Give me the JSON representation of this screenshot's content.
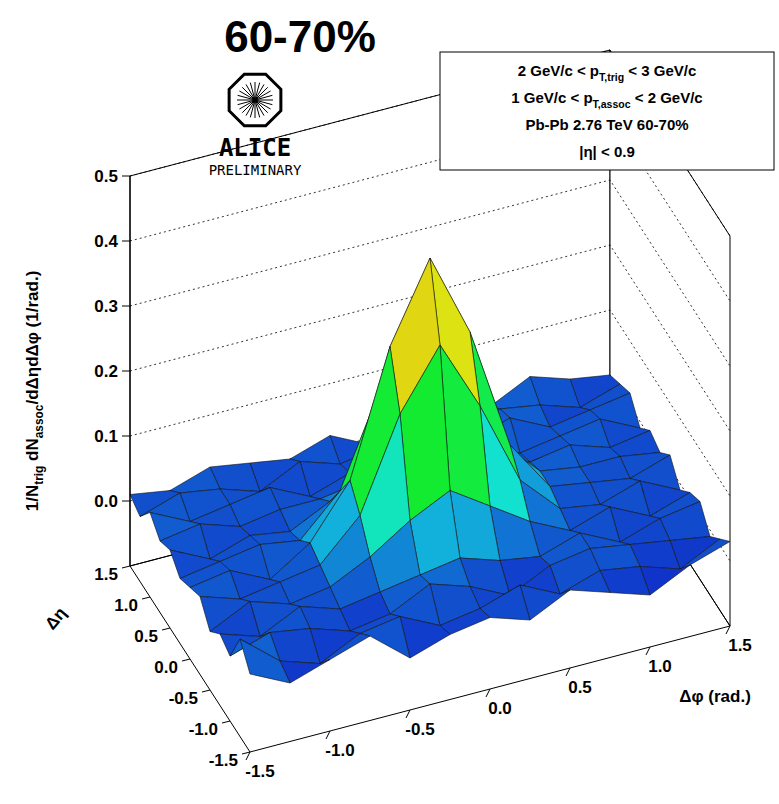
{
  "chart_data": {
    "type": "surface3d",
    "title": "60-70%",
    "logo": {
      "name": "ALICE",
      "tag": "PRELIMINARY"
    },
    "info_box": [
      [
        {
          "text": "2 GeV/c < p"
        },
        {
          "sub": "T,trig"
        },
        {
          "text": " < 3 GeV/c"
        }
      ],
      [
        {
          "text": "1 GeV/c < p"
        },
        {
          "sub": "T,assoc"
        },
        {
          "text": " < 2 GeV/c"
        }
      ],
      [
        {
          "text": "Pb-Pb 2.76 TeV  60-70%"
        }
      ],
      [
        {
          "text": "|η| < 0.9"
        }
      ]
    ],
    "x_label": "Δφ (rad.)",
    "y_label": "Δη",
    "z_label": [
      {
        "text": "1/N"
      },
      {
        "sub": "trig"
      },
      {
        "text": " dN"
      },
      {
        "sub": "assoc"
      },
      {
        "text": "/dΔηdΔφ (1/rad.)"
      }
    ],
    "x": [
      -1.5,
      -1.25,
      -1.0,
      -0.75,
      -0.5,
      -0.25,
      0.0,
      0.25,
      0.5,
      0.75,
      1.0,
      1.25,
      1.5
    ],
    "y": [
      -1.5,
      -1.25,
      -1.0,
      -0.75,
      -0.5,
      -0.25,
      0.0,
      0.25,
      0.5,
      0.75,
      1.0,
      1.25,
      1.5
    ],
    "z": [
      [
        0.02,
        -0.01,
        0.01,
        0.03,
        -0.02,
        0.0,
        0.01,
        -0.01,
        0.02,
        0.0,
        -0.02,
        0.01,
        0.03
      ],
      [
        0.05,
        0.0,
        -0.02,
        0.01,
        0.02,
        -0.01,
        0.0,
        0.02,
        -0.01,
        0.01,
        0.0,
        -0.02,
        0.01
      ],
      [
        0.0,
        0.02,
        0.01,
        -0.01,
        0.0,
        0.03,
        0.01,
        -0.02,
        0.01,
        0.02,
        0.01,
        0.0,
        -0.01
      ],
      [
        0.01,
        -0.01,
        0.02,
        0.0,
        0.01,
        0.02,
        0.03,
        0.01,
        0.0,
        0.02,
        -0.01,
        0.01,
        0.02
      ],
      [
        -0.01,
        0.02,
        0.0,
        0.01,
        0.04,
        0.08,
        0.11,
        0.07,
        0.03,
        0.0,
        0.02,
        -0.01,
        0.01
      ],
      [
        0.02,
        0.0,
        0.01,
        0.02,
        0.08,
        0.22,
        0.31,
        0.2,
        0.07,
        0.01,
        0.0,
        0.02,
        -0.01
      ],
      [
        0.01,
        0.02,
        -0.01,
        0.03,
        0.11,
        0.3,
        0.42,
        0.29,
        0.1,
        0.02,
        0.01,
        0.0,
        0.02
      ],
      [
        0.0,
        0.01,
        0.02,
        0.01,
        0.07,
        0.21,
        0.3,
        0.22,
        0.08,
        0.02,
        0.01,
        0.01,
        0.0
      ],
      [
        0.02,
        -0.01,
        0.01,
        0.0,
        0.03,
        0.07,
        0.1,
        0.08,
        0.02,
        0.01,
        0.02,
        0.0,
        0.01
      ],
      [
        0.01,
        0.02,
        0.0,
        0.01,
        0.01,
        0.02,
        0.02,
        0.01,
        0.02,
        0.0,
        0.01,
        0.02,
        -0.01
      ],
      [
        0.03,
        0.0,
        0.01,
        0.02,
        -0.01,
        0.01,
        0.0,
        0.02,
        0.01,
        0.03,
        0.0,
        0.01,
        0.02
      ],
      [
        0.0,
        0.02,
        0.01,
        -0.01,
        0.02,
        0.0,
        0.01,
        0.01,
        0.0,
        0.02,
        0.01,
        -0.01,
        0.01
      ],
      [
        0.01,
        0.0,
        0.02,
        0.01,
        0.0,
        0.02,
        -0.01,
        0.01,
        0.02,
        0.0,
        0.03,
        0.01,
        0.0
      ]
    ],
    "xlim": [
      -1.5,
      1.5
    ],
    "ylim": [
      -1.5,
      1.5
    ],
    "zlim": [
      -0.1,
      0.5
    ],
    "xticks": [
      -1.5,
      {
        "value": -1,
        "label": "-1.0"
      },
      -0.5,
      {
        "value": 0,
        "label": "0.0"
      },
      0.5,
      {
        "value": 1,
        "label": "1.0"
      },
      1.5
    ],
    "yticks": [
      -1.5,
      {
        "value": -1,
        "label": "-1.0"
      },
      -0.5,
      {
        "value": 0,
        "label": "0.0"
      },
      0.5,
      {
        "value": 1,
        "label": "1.0"
      },
      1.5
    ],
    "zticks": [
      {
        "value": 0,
        "label": "0.0"
      },
      0.1,
      0.2,
      0.3,
      0.4,
      0.5
    ],
    "grid": true
  }
}
